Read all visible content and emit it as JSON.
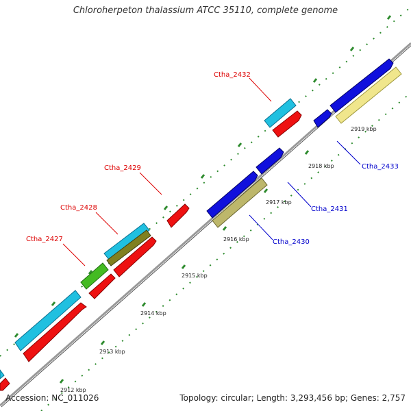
{
  "title": "Chloroherpeton thalassium ATCC 35110, complete genome",
  "footer": {
    "accession": "Accession: NC_011026",
    "summary": "Topology: circular; Length: 3,293,456 bp; Genes: 2,757"
  },
  "colors": {
    "backbone": "#999999",
    "tick": "#2e8b2e",
    "label_red": "#dd0000",
    "label_blue": "#0000cc",
    "cyan": "#20c0e0",
    "red": "#ee1111",
    "blue": "#1010dd",
    "green": "#44bb22",
    "olive": "#808020",
    "khaki": "#bdb76b",
    "pale_yellow": "#f0e68c"
  },
  "ticks": [
    {
      "label": "2912 kbp"
    },
    {
      "label": "2913 kbp"
    },
    {
      "label": "2914 kbp"
    },
    {
      "label": "2915 kbp"
    },
    {
      "label": "2916 kbp"
    },
    {
      "label": "2917 kbp"
    },
    {
      "label": "2918 kbp"
    },
    {
      "label": "2919 kbp"
    }
  ],
  "gene_labels": [
    {
      "text": "Ctha_2432",
      "side": "left"
    },
    {
      "text": "Ctha_2429",
      "side": "left"
    },
    {
      "text": "Ctha_2428",
      "side": "left"
    },
    {
      "text": "Ctha_2427",
      "side": "left"
    },
    {
      "text": "Ctha_2433",
      "side": "right"
    },
    {
      "text": "Ctha_2431",
      "side": "right"
    },
    {
      "text": "Ctha_2430",
      "side": "right"
    }
  ]
}
